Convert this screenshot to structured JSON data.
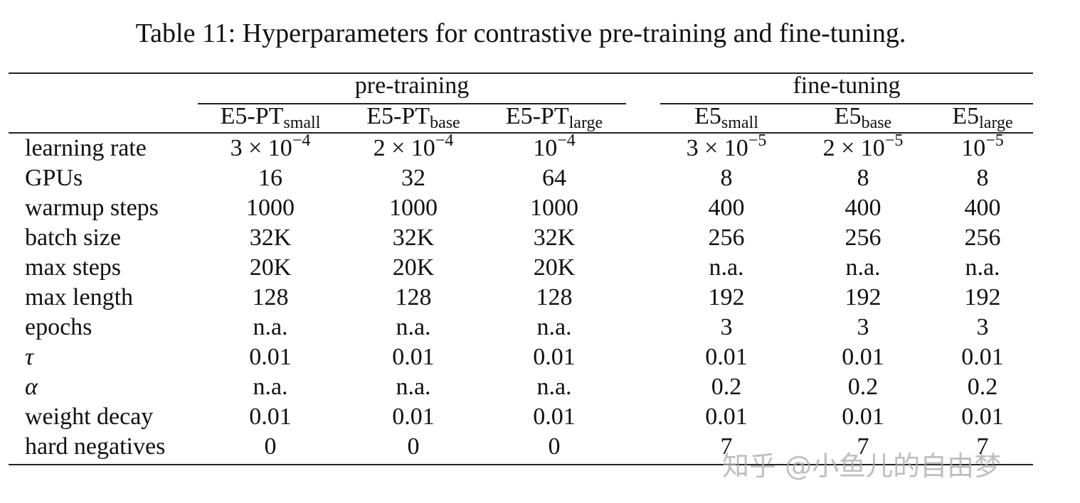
{
  "caption": "Table 11: Hyperparameters for contrastive pre-training and fine-tuning.",
  "groups": [
    "pre-training",
    "fine-tuning"
  ],
  "columns": [
    {
      "base": "E5-PT",
      "sub": "small"
    },
    {
      "base": "E5-PT",
      "sub": "base"
    },
    {
      "base": "E5-PT",
      "sub": "large"
    },
    {
      "base": "E5",
      "sub": "small"
    },
    {
      "base": "E5",
      "sub": "base"
    },
    {
      "base": "E5",
      "sub": "large"
    }
  ],
  "rows": [
    {
      "label": "learning rate",
      "cells": [
        {
          "text": "3 × 10",
          "sup": "−4"
        },
        {
          "text": "2 × 10",
          "sup": "−4"
        },
        {
          "text": "10",
          "sup": "−4"
        },
        {
          "text": "3 × 10",
          "sup": "−5"
        },
        {
          "text": "2 × 10",
          "sup": "−5"
        },
        {
          "text": "10",
          "sup": "−5"
        }
      ]
    },
    {
      "label": "GPUs",
      "cells": [
        "16",
        "32",
        "64",
        "8",
        "8",
        "8"
      ]
    },
    {
      "label": "warmup steps",
      "cells": [
        "1000",
        "1000",
        "1000",
        "400",
        "400",
        "400"
      ]
    },
    {
      "label": "batch size",
      "cells": [
        "32K",
        "32K",
        "32K",
        "256",
        "256",
        "256"
      ]
    },
    {
      "label": "max steps",
      "cells": [
        "20K",
        "20K",
        "20K",
        "n.a.",
        "n.a.",
        "n.a."
      ]
    },
    {
      "label": "max length",
      "cells": [
        "128",
        "128",
        "128",
        "192",
        "192",
        "192"
      ]
    },
    {
      "label": "epochs",
      "cells": [
        "n.a.",
        "n.a.",
        "n.a.",
        "3",
        "3",
        "3"
      ]
    },
    {
      "label": "τ",
      "cells": [
        "0.01",
        "0.01",
        "0.01",
        "0.01",
        "0.01",
        "0.01"
      ]
    },
    {
      "label": "α",
      "cells": [
        "n.a.",
        "n.a.",
        "n.a.",
        "0.2",
        "0.2",
        "0.2"
      ]
    },
    {
      "label": "weight decay",
      "cells": [
        "0.01",
        "0.01",
        "0.01",
        "0.01",
        "0.01",
        "0.01"
      ]
    },
    {
      "label": "hard negatives",
      "cells": [
        "0",
        "0",
        "0",
        "7",
        "7",
        "7"
      ]
    }
  ],
  "watermark": "知乎 @小鱼儿的自由梦"
}
